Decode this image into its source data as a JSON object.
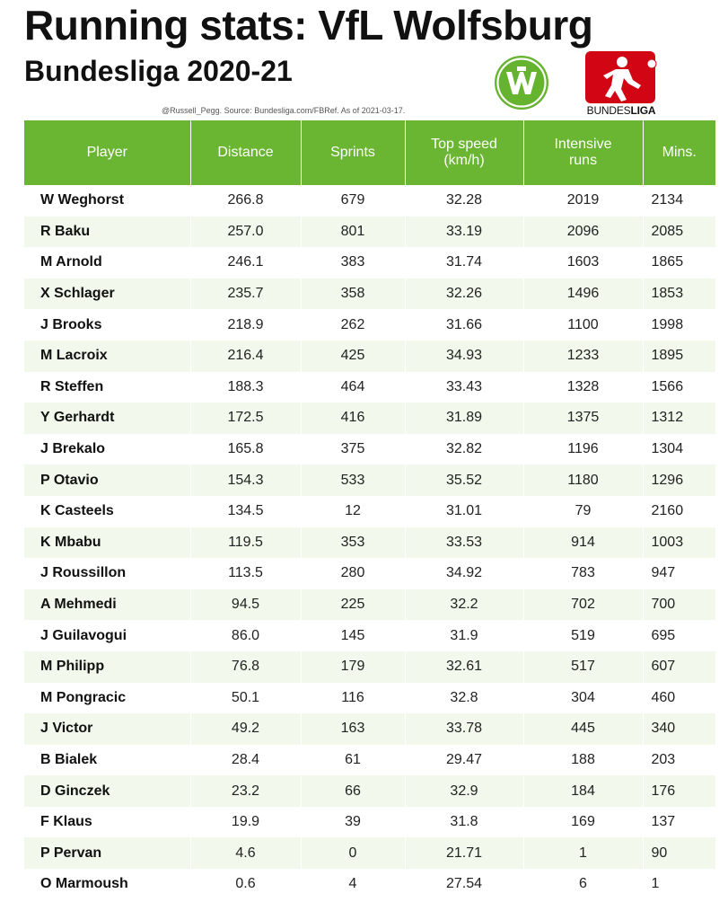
{
  "header": {
    "title": "Running stats: VfL Wolfsburg",
    "subtitle": "Bundesliga 2020-21",
    "source": "@Russell_Pegg. Source: Bundesliga.com/FBRef. As of 2021-03-17."
  },
  "logos": {
    "club": "vfl-wolfsburg-logo",
    "league": "bundesliga-logo",
    "league_caption_regular": "BUNDES",
    "league_caption_bold": "LIGA"
  },
  "colors": {
    "header_green": "#6ab632",
    "stripe": "#f2f8ec",
    "wolfsburg_green": "#65b32e",
    "bundesliga_red": "#d20515"
  },
  "chart_data": {
    "type": "table",
    "columns": [
      "Player",
      "Distance",
      "Sprints",
      "Top speed\n(km/h)",
      "Intensive\nruns",
      "Mins."
    ],
    "rows": [
      [
        "W Weghorst",
        "266.8",
        "679",
        "32.28",
        "2019",
        "2134"
      ],
      [
        "R Baku",
        "257.0",
        "801",
        "33.19",
        "2096",
        "2085"
      ],
      [
        "M Arnold",
        "246.1",
        "383",
        "31.74",
        "1603",
        "1865"
      ],
      [
        "X Schlager",
        "235.7",
        "358",
        "32.26",
        "1496",
        "1853"
      ],
      [
        "J Brooks",
        "218.9",
        "262",
        "31.66",
        "1100",
        "1998"
      ],
      [
        "M Lacroix",
        "216.4",
        "425",
        "34.93",
        "1233",
        "1895"
      ],
      [
        "R Steffen",
        "188.3",
        "464",
        "33.43",
        "1328",
        "1566"
      ],
      [
        "Y Gerhardt",
        "172.5",
        "416",
        "31.89",
        "1375",
        "1312"
      ],
      [
        "J Brekalo",
        "165.8",
        "375",
        "32.82",
        "1196",
        "1304"
      ],
      [
        "P Otavio",
        "154.3",
        "533",
        "35.52",
        "1180",
        "1296"
      ],
      [
        "K Casteels",
        "134.5",
        "12",
        "31.01",
        "79",
        "2160"
      ],
      [
        "K Mbabu",
        "119.5",
        "353",
        "33.53",
        "914",
        "1003"
      ],
      [
        "J Roussillon",
        "113.5",
        "280",
        "34.92",
        "783",
        "947"
      ],
      [
        "A Mehmedi",
        "94.5",
        "225",
        "32.2",
        "702",
        "700"
      ],
      [
        "J Guilavogui",
        "86.0",
        "145",
        "31.9",
        "519",
        "695"
      ],
      [
        "M Philipp",
        "76.8",
        "179",
        "32.61",
        "517",
        "607"
      ],
      [
        "M Pongracic",
        "50.1",
        "116",
        "32.8",
        "304",
        "460"
      ],
      [
        "J Victor",
        "49.2",
        "163",
        "33.78",
        "445",
        "340"
      ],
      [
        "B Bialek",
        "28.4",
        "61",
        "29.47",
        "188",
        "203"
      ],
      [
        "D Ginczek",
        "23.2",
        "66",
        "32.9",
        "184",
        "176"
      ],
      [
        "F Klaus",
        "19.9",
        "39",
        "31.8",
        "169",
        "137"
      ],
      [
        "P Pervan",
        "4.6",
        "0",
        "21.71",
        "1",
        "90"
      ],
      [
        "O Marmoush",
        "0.6",
        "4",
        "27.54",
        "6",
        "1"
      ]
    ]
  }
}
